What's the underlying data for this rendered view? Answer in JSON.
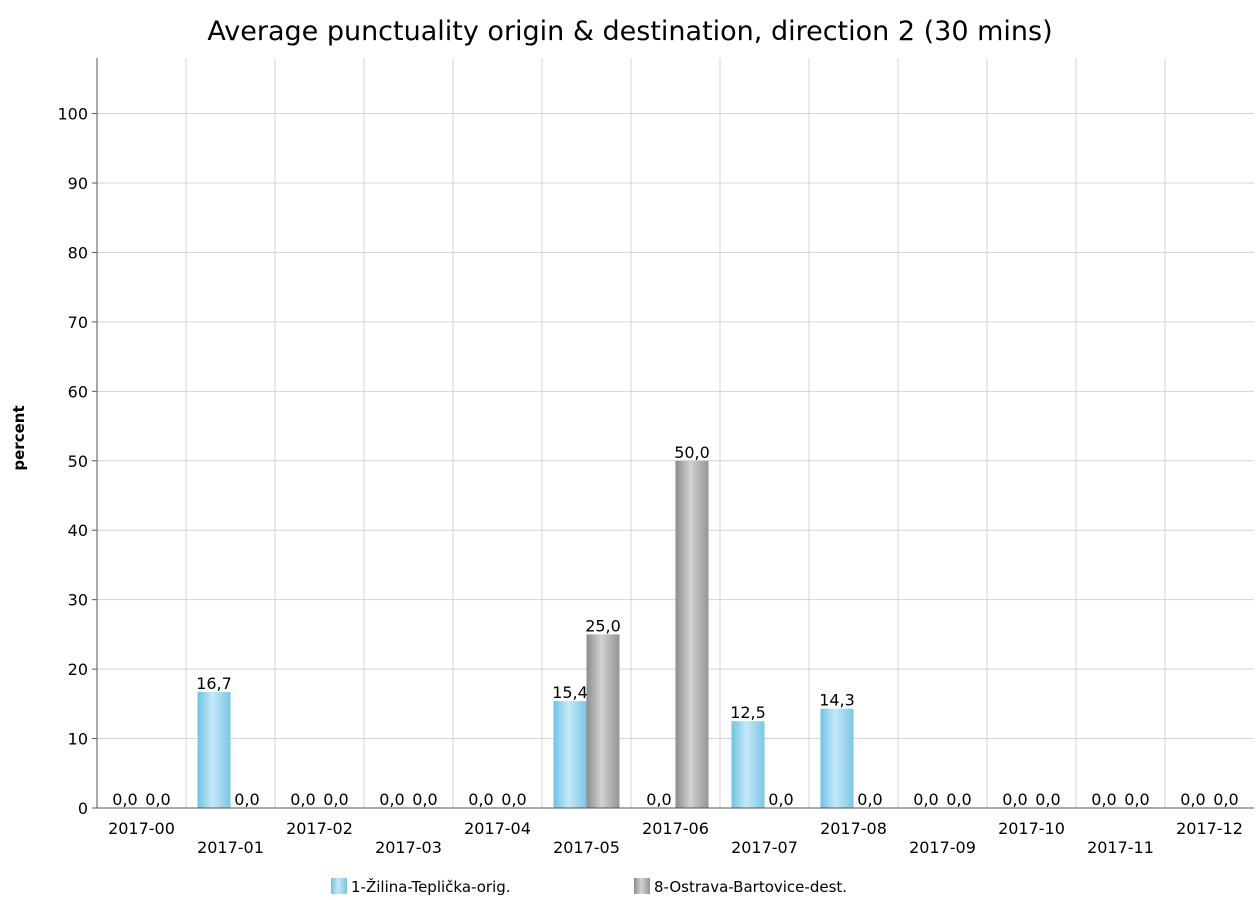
{
  "chart_data": {
    "type": "bar",
    "title": "Average punctuality origin & destination, direction 2 (30 mins)",
    "xlabel": "",
    "ylabel": "percent",
    "ylim": [
      0,
      108
    ],
    "yticks": [
      0,
      10,
      20,
      30,
      40,
      50,
      60,
      70,
      80,
      90,
      100
    ],
    "grid": true,
    "legend_position": "bottom",
    "categories": [
      "2017-00",
      "2017-01",
      "2017-02",
      "2017-03",
      "2017-04",
      "2017-05",
      "2017-06",
      "2017-07",
      "2017-08",
      "2017-09",
      "2017-10",
      "2017-11",
      "2017-12"
    ],
    "series": [
      {
        "name": "1-Žilina-Teplička-orig.",
        "color": "#8ccfea",
        "values": [
          0.0,
          16.7,
          0.0,
          0.0,
          0.0,
          15.4,
          0.0,
          12.5,
          14.3,
          0.0,
          0.0,
          0.0,
          0.0
        ],
        "labels": [
          "0,0",
          "16,7",
          "0,0",
          "0,0",
          "0,0",
          "15,4",
          "0,0",
          "12,5",
          "14,3",
          "0,0",
          "0,0",
          "0,0",
          "0,0"
        ]
      },
      {
        "name": "8-Ostrava-Bartovice-dest.",
        "color": "#a8a8a8",
        "values": [
          0.0,
          0.0,
          0.0,
          0.0,
          0.0,
          25.0,
          50.0,
          0.0,
          0.0,
          0.0,
          0.0,
          0.0,
          0.0
        ],
        "labels": [
          "0,0",
          "0,0",
          "0,0",
          "0,0",
          "0,0",
          "25,0",
          "50,0",
          "0,0",
          "0,0",
          "0,0",
          "0,0",
          "0,0",
          "0,0"
        ]
      }
    ]
  }
}
